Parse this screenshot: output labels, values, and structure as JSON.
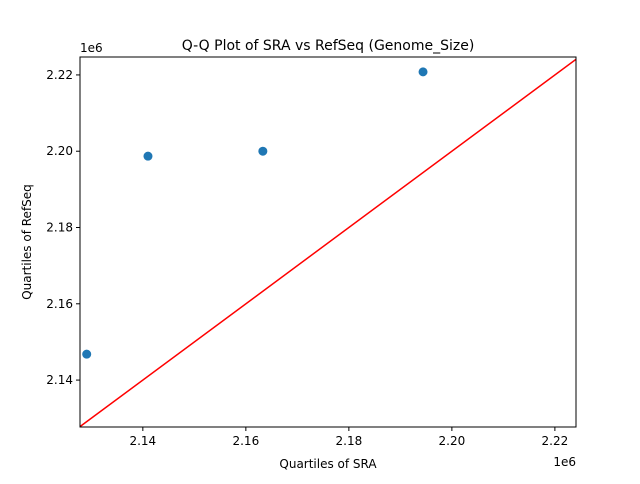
{
  "chart_data": {
    "type": "scatter",
    "title": "Q-Q Plot of SRA vs RefSeq (Genome_Size)",
    "xlabel": "Quartiles of SRA",
    "ylabel": "Quartiles of RefSeq",
    "x_offset_label": "1e6",
    "y_offset_label": "1e6",
    "xlim": [
      2.1278,
      2.2241
    ],
    "ylim": [
      2.1277,
      2.2247
    ],
    "xticks": [
      "2.14",
      "2.16",
      "2.18",
      "2.20",
      "2.22"
    ],
    "xtick_values": [
      2.14,
      2.16,
      2.18,
      2.2,
      2.22
    ],
    "yticks": [
      "2.14",
      "2.16",
      "2.18",
      "2.20",
      "2.22"
    ],
    "ytick_values": [
      2.14,
      2.16,
      2.18,
      2.2,
      2.22
    ],
    "points": {
      "x": [
        2.1291,
        2.141,
        2.1633,
        2.1944
      ],
      "y": [
        2.1468,
        2.1987,
        2.2,
        2.2208
      ],
      "color": "#1f77b4"
    },
    "reference_line": {
      "type": "y=x",
      "color": "#ff0000"
    },
    "grid": false
  }
}
